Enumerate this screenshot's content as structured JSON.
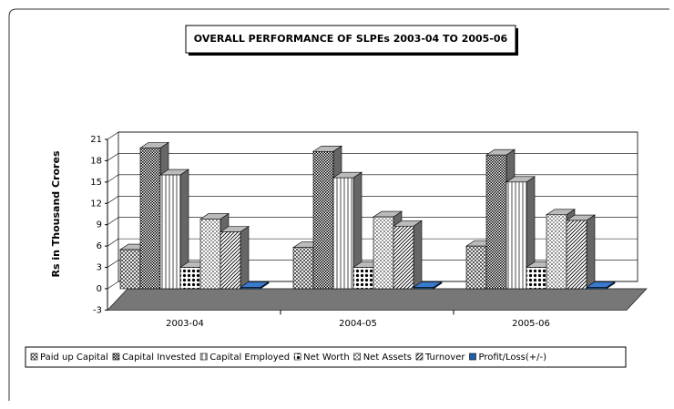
{
  "chart_data": {
    "type": "bar3d",
    "title": "OVERALL PERFORMANCE OF SLPEs 2003-04 TO 2005-06",
    "y_label": "Rs in  Thousand Crores",
    "categories": [
      "2003-04",
      "2004-05",
      "2005-06"
    ],
    "series": [
      {
        "name": "Paid up Capital",
        "color": "#000000",
        "values": [
          5.5,
          5.8,
          6
        ]
      },
      {
        "name": "Capital Invested",
        "color": "#000000",
        "values": [
          19.8,
          19.3,
          18.8
        ]
      },
      {
        "name": "Capital Employed",
        "color": "#000000",
        "values": [
          16,
          15.6,
          15
        ]
      },
      {
        "name": "Net Worth",
        "color": "#000000",
        "values": [
          3,
          3,
          3
        ]
      },
      {
        "name": "Net Assets",
        "color": "#000000",
        "values": [
          9.8,
          10.1,
          10.4
        ]
      },
      {
        "name": "Turnover",
        "color": "#000000",
        "values": [
          8,
          8.8,
          9.6
        ]
      },
      {
        "name": "Profit/Loss(+/-)",
        "color": "#1f5fa8",
        "values": [
          0.2,
          0.2,
          0.2
        ]
      }
    ],
    "ylim": [
      -3,
      21
    ],
    "yticks": [
      -3,
      0,
      3,
      6,
      9,
      12,
      15,
      18,
      21
    ],
    "grid": true
  }
}
